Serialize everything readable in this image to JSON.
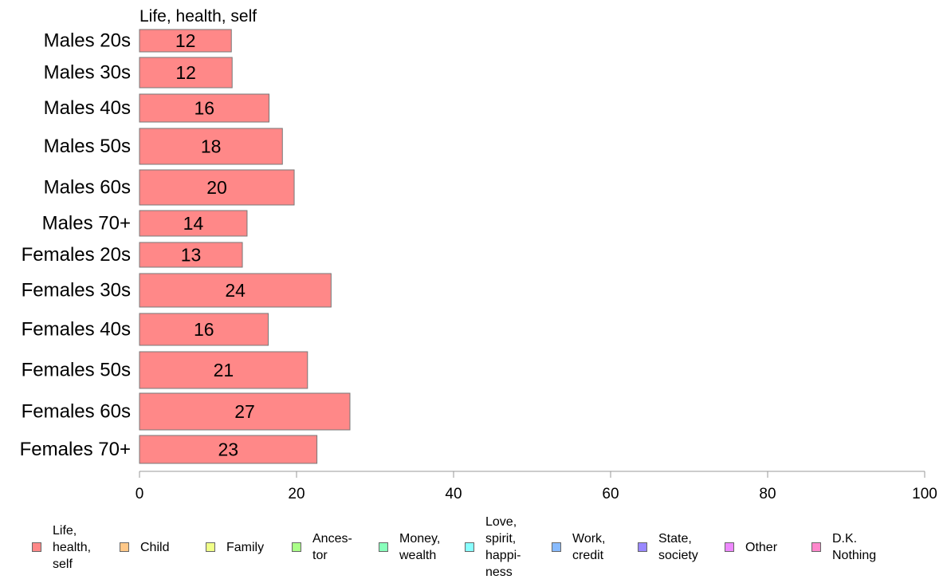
{
  "chart_data": {
    "type": "bar",
    "orientation": "horizontal",
    "series_title": "Life, health, self",
    "categories": [
      "Males 20s",
      "Males 30s",
      "Males 40s",
      "Males 50s",
      "Males 60s",
      "Males 70+",
      "Females 20s",
      "Females 30s",
      "Females 40s",
      "Females 50s",
      "Females 60s",
      "Females 70+"
    ],
    "values": [
      11.7,
      11.8,
      16.5,
      18.2,
      19.7,
      13.7,
      13.1,
      24.4,
      16.4,
      21.4,
      26.8,
      22.6
    ],
    "data_labels": [
      "12",
      "12",
      "16",
      "18",
      "20",
      "14",
      "13",
      "24",
      "16",
      "21",
      "27",
      "23"
    ],
    "bar_color": "#ff8888",
    "xlim": [
      0,
      100
    ],
    "xticks": [
      "0",
      "20",
      "40",
      "60",
      "80",
      "100"
    ],
    "grid": false,
    "legend_position": "bottom",
    "legend": [
      {
        "label": "Life,\nhealth,\nself",
        "color": "#ff8888"
      },
      {
        "label": "Child",
        "color": "#ffc888"
      },
      {
        "label": "Family",
        "color": "#f0ff88"
      },
      {
        "label": "Ances-\ntor",
        "color": "#aaff88"
      },
      {
        "label": "Money,\nwealth",
        "color": "#88ffbb"
      },
      {
        "label": "Love,\nspirit,\nhappi-\nness",
        "color": "#88ffff"
      },
      {
        "label": "Work,\ncredit",
        "color": "#88bbff"
      },
      {
        "label": "State,\nsociety",
        "color": "#9988ff"
      },
      {
        "label": "Other",
        "color": "#ee88ff"
      },
      {
        "label": "D.K.\nNothing",
        "color": "#ff88cc"
      }
    ]
  }
}
